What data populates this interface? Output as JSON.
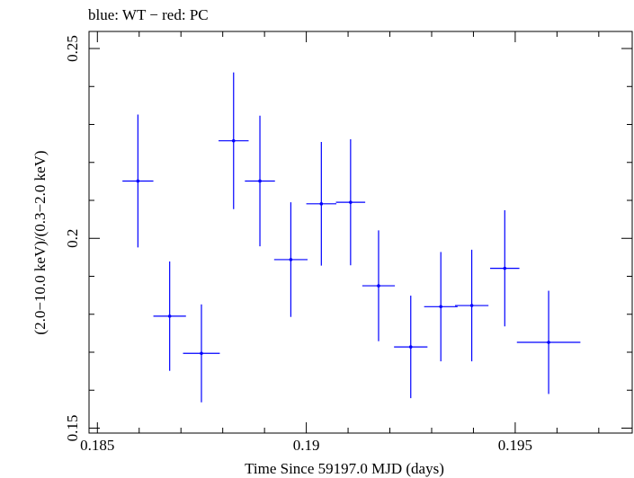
{
  "chart_data": {
    "type": "scatter",
    "title": "blue: WT − red: PC",
    "xlabel": "Time Since 59197.0 MJD (days)",
    "ylabel": "(2.0−10.0 keV)/(0.3−2.0 keV)",
    "xlim": [
      0.1848,
      0.1978
    ],
    "ylim": [
      0.1487,
      0.2545
    ],
    "x_ticks": [
      {
        "value": 0.185,
        "label": "0.185"
      },
      {
        "value": 0.19,
        "label": "0.19"
      },
      {
        "value": 0.195,
        "label": "0.195"
      }
    ],
    "y_ticks": [
      {
        "value": 0.15,
        "label": "0.15"
      },
      {
        "value": 0.2,
        "label": "0.2"
      },
      {
        "value": 0.25,
        "label": "0.25"
      }
    ],
    "x_minor_step": 0.001,
    "y_minor_step": 0.01,
    "grid": false,
    "series": [
      {
        "name": "WT",
        "color": "#0000ff",
        "points": [
          {
            "x": 0.18597,
            "xerr": 0.00037,
            "y": 0.2151,
            "yerr": 0.0175
          },
          {
            "x": 0.18673,
            "xerr": 0.00039,
            "y": 0.1795,
            "yerr": 0.0144
          },
          {
            "x": 0.18749,
            "xerr": 0.00044,
            "y": 0.1697,
            "yerr": 0.0129
          },
          {
            "x": 0.18826,
            "xerr": 0.00036,
            "y": 0.2257,
            "yerr": 0.018
          },
          {
            "x": 0.18889,
            "xerr": 0.00036,
            "y": 0.2151,
            "yerr": 0.0172
          },
          {
            "x": 0.18963,
            "xerr": 0.0004,
            "y": 0.1944,
            "yerr": 0.0151
          },
          {
            "x": 0.19036,
            "xerr": 0.00036,
            "y": 0.2091,
            "yerr": 0.0163
          },
          {
            "x": 0.19106,
            "xerr": 0.00035,
            "y": 0.2095,
            "yerr": 0.0166
          },
          {
            "x": 0.19173,
            "xerr": 0.00039,
            "y": 0.1875,
            "yerr": 0.0146
          },
          {
            "x": 0.1925,
            "xerr": 0.0004,
            "y": 0.1714,
            "yerr": 0.0135
          },
          {
            "x": 0.19322,
            "xerr": 0.0004,
            "y": 0.182,
            "yerr": 0.0144
          },
          {
            "x": 0.19396,
            "xerr": 0.0004,
            "y": 0.1823,
            "yerr": 0.0147
          },
          {
            "x": 0.19475,
            "xerr": 0.00035,
            "y": 0.1921,
            "yerr": 0.0153
          },
          {
            "x": 0.1958,
            "xerr": 0.00076,
            "y": 0.1726,
            "yerr": 0.0136
          }
        ]
      }
    ]
  }
}
